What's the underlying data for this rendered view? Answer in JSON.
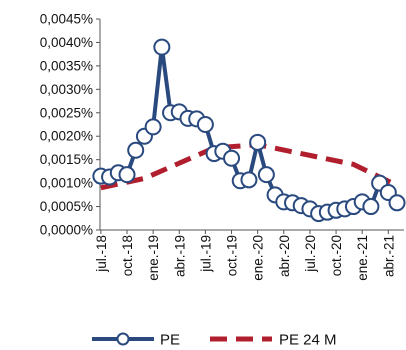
{
  "chart_data": {
    "type": "line",
    "title": "",
    "xlabel": "",
    "ylabel": "",
    "ylim": [
      0,
      0.0045
    ],
    "y_ticks": [
      "0,0000%",
      "0,0005%",
      "0,0010%",
      "0,0015%",
      "0,0020%",
      "0,0025%",
      "0,0030%",
      "0,0035%",
      "0,0040%",
      "0,0045%"
    ],
    "x_labels": [
      {
        "index": 0,
        "label": "jul.-18"
      },
      {
        "index": 3,
        "label": "oct.-18"
      },
      {
        "index": 6,
        "label": "ene.-19"
      },
      {
        "index": 9,
        "label": "abr.-19"
      },
      {
        "index": 12,
        "label": "jul.-19"
      },
      {
        "index": 15,
        "label": "oct.-19"
      },
      {
        "index": 18,
        "label": "ene.-20"
      },
      {
        "index": 21,
        "label": "abr.-20"
      },
      {
        "index": 24,
        "label": "jul.-20"
      },
      {
        "index": 27,
        "label": "oct.-20"
      },
      {
        "index": 30,
        "label": "ene.-21"
      },
      {
        "index": 33,
        "label": "abr.-21"
      }
    ],
    "grid": false,
    "legend_position": "bottom",
    "series": [
      {
        "name": "PE",
        "color": "#2a4a7f",
        "style": "solid-with-open-markers",
        "values": [
          0.00115,
          0.00113,
          0.00122,
          0.00118,
          0.0017,
          0.002,
          0.0022,
          0.0039,
          0.0025,
          0.00252,
          0.00238,
          0.00237,
          0.00225,
          0.00163,
          0.00168,
          0.00153,
          0.00105,
          0.00107,
          0.00187,
          0.00118,
          0.00075,
          0.0006,
          0.00058,
          0.00052,
          0.00045,
          0.00035,
          0.00038,
          0.00042,
          0.00045,
          0.0005,
          0.0006,
          0.0005,
          0.001,
          0.0008,
          0.00058
        ]
      },
      {
        "name": "PE 24 M",
        "color": "#b11e2d",
        "style": "dashed",
        "values": [
          0.0009,
          null,
          null,
          null,
          null,
          0.0011,
          null,
          null,
          null,
          null,
          null,
          null,
          null,
          0.00175,
          null,
          null,
          null,
          null,
          0.00182,
          null,
          null,
          null,
          null,
          null,
          null,
          null,
          null,
          null,
          null,
          0.0014,
          null,
          null,
          null,
          null,
          0.00095
        ]
      }
    ]
  }
}
